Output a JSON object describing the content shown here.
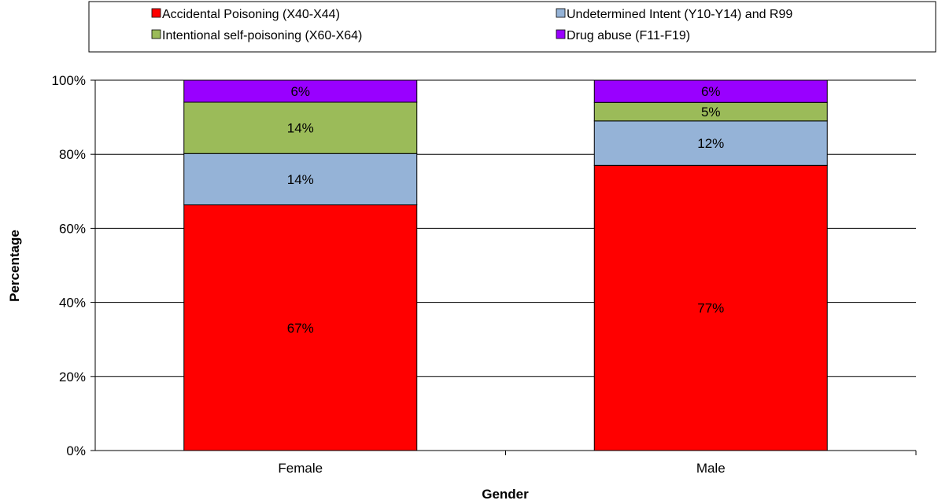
{
  "chart_data": {
    "type": "bar",
    "stacked": true,
    "percent_stacked": true,
    "categories": [
      "Female",
      "Male"
    ],
    "series": [
      {
        "name": "Accidental Poisoning (X40-X44)",
        "values": [
          67,
          77
        ],
        "labels": [
          "67%",
          "77%"
        ],
        "color": "#ff0000"
      },
      {
        "name": "Undetermined Intent (Y10-Y14) and R99",
        "values": [
          14,
          12
        ],
        "labels": [
          "14%",
          "12%"
        ],
        "color": "#95b3d7"
      },
      {
        "name": "Intentional self-poisoning (X60-X64)",
        "values": [
          14,
          5
        ],
        "labels": [
          "14%",
          "5%"
        ],
        "color": "#9bbb59"
      },
      {
        "name": "Drug abuse (F11-F19)",
        "values": [
          6,
          6
        ],
        "labels": [
          "6%",
          "6%"
        ],
        "color": "#9900ff"
      }
    ],
    "xlabel": "Gender",
    "ylabel": "Percentage",
    "ylim": [
      0,
      100
    ],
    "yticks": [
      "0%",
      "20%",
      "40%",
      "60%",
      "80%",
      "100%"
    ],
    "grid": true,
    "legend_position": "top"
  }
}
